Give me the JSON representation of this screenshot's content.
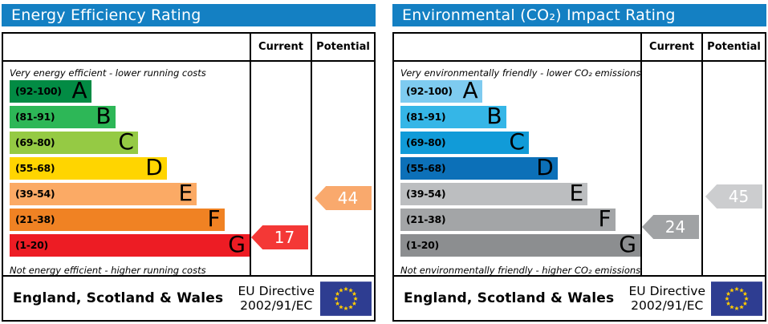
{
  "accent": {
    "header_bg": "#1480c3",
    "header_text": "#ffffff",
    "border": "#000000",
    "flag_bg": "#2e3d91",
    "flag_stars": "#ffcc00"
  },
  "chart_data": [
    {
      "type": "bar",
      "title": "Energy Efficiency Rating",
      "column_headers": [
        "Current",
        "Potential"
      ],
      "top_caption": "Very energy efficient - lower running costs",
      "bottom_caption": "Not energy efficient - higher running costs",
      "categories": [
        "A (92-100)",
        "B (81-91)",
        "C (69-80)",
        "D (55-68)",
        "E (39-54)",
        "F (21-38)",
        "G (1-20)"
      ],
      "band_colors": [
        "#028b44",
        "#2db757",
        "#95ca44",
        "#ffd500",
        "#fbaa65",
        "#f08223",
        "#ed1c24"
      ],
      "bar_lengths_pct": [
        34,
        44,
        53.5,
        65.5,
        78,
        89.5,
        100
      ],
      "current": {
        "value": 17,
        "band": "G"
      },
      "potential": {
        "value": 44,
        "band": "E"
      },
      "footer": "England, Scotland & Wales — EU Directive 2002/91/EC"
    },
    {
      "type": "bar",
      "title": "Environmental (CO₂) Impact Rating",
      "column_headers": [
        "Current",
        "Potential"
      ],
      "top_caption": "Very environmentally friendly - lower CO₂ emissions",
      "bottom_caption": "Not environmentally friendly - higher CO₂ emissions",
      "categories": [
        "A (92-100)",
        "B (81-91)",
        "C (69-80)",
        "D (55-68)",
        "E (39-54)",
        "F (21-38)",
        "G (1-20)"
      ],
      "band_colors": [
        "#7ecbf0",
        "#35b6e7",
        "#119bd8",
        "#0c70b8",
        "#bcbec0",
        "#a3a5a7",
        "#8c8e90"
      ],
      "bar_lengths_pct": [
        34,
        44,
        53.5,
        65.5,
        78,
        89.5,
        100
      ],
      "current": {
        "value": 24,
        "band": "F"
      },
      "potential": {
        "value": 45,
        "band": "E"
      },
      "footer": "England, Scotland & Wales — EU Directive 2002/91/EC"
    }
  ],
  "panels": [
    {
      "id": "energy-efficiency",
      "title": "Energy Efficiency Rating",
      "columns": {
        "current": "Current",
        "potential": "Potential"
      },
      "top_caption": "Very energy efficient - lower running costs",
      "bottom_caption": "Not energy efficient - higher running costs",
      "bands": [
        {
          "label": "(92-100)",
          "letter": "A",
          "lo": 92,
          "hi": 100,
          "color": "#028b44",
          "width_pct": 34
        },
        {
          "label": "(81-91)",
          "letter": "B",
          "lo": 81,
          "hi": 91,
          "color": "#2db757",
          "width_pct": 44
        },
        {
          "label": "(69-80)",
          "letter": "C",
          "lo": 69,
          "hi": 80,
          "color": "#95ca44",
          "width_pct": 53.5
        },
        {
          "label": "(55-68)",
          "letter": "D",
          "lo": 55,
          "hi": 68,
          "color": "#ffd500",
          "width_pct": 65.5
        },
        {
          "label": "(39-54)",
          "letter": "E",
          "lo": 39,
          "hi": 54,
          "color": "#fbaa65",
          "width_pct": 78
        },
        {
          "label": "(21-38)",
          "letter": "F",
          "lo": 21,
          "hi": 38,
          "color": "#f08223",
          "width_pct": 89.5
        },
        {
          "label": "(1-20)",
          "letter": "G",
          "lo": 1,
          "hi": 20,
          "color": "#ed1c24",
          "width_pct": 100
        }
      ],
      "current": {
        "value": 17,
        "color": "#f43836"
      },
      "potential": {
        "value": 44,
        "color": "#f9a96d"
      },
      "footer": {
        "region": "England, Scotland & Wales",
        "directive_line1": "EU Directive",
        "directive_line2": "2002/91/EC"
      }
    },
    {
      "id": "environmental-impact",
      "title": "Environmental (CO₂) Impact Rating",
      "columns": {
        "current": "Current",
        "potential": "Potential"
      },
      "top_caption": "Very environmentally friendly - lower CO₂ emissions",
      "bottom_caption": "Not environmentally friendly - higher CO₂ emissions",
      "bands": [
        {
          "label": "(92-100)",
          "letter": "A",
          "lo": 92,
          "hi": 100,
          "color": "#7ecbf0",
          "width_pct": 34
        },
        {
          "label": "(81-91)",
          "letter": "B",
          "lo": 81,
          "hi": 91,
          "color": "#35b6e7",
          "width_pct": 44
        },
        {
          "label": "(69-80)",
          "letter": "C",
          "lo": 69,
          "hi": 80,
          "color": "#119bd8",
          "width_pct": 53.5
        },
        {
          "label": "(55-68)",
          "letter": "D",
          "lo": 55,
          "hi": 68,
          "color": "#0c70b8",
          "width_pct": 65.5
        },
        {
          "label": "(39-54)",
          "letter": "E",
          "lo": 39,
          "hi": 54,
          "color": "#bcbec0",
          "width_pct": 78
        },
        {
          "label": "(21-38)",
          "letter": "F",
          "lo": 21,
          "hi": 38,
          "color": "#a3a5a7",
          "width_pct": 89.5
        },
        {
          "label": "(1-20)",
          "letter": "G",
          "lo": 1,
          "hi": 20,
          "color": "#8c8e90",
          "width_pct": 100
        }
      ],
      "current": {
        "value": 24,
        "color": "#a0a2a4"
      },
      "potential": {
        "value": 45,
        "color": "#cccdcf"
      },
      "footer": {
        "region": "England, Scotland & Wales",
        "directive_line1": "EU Directive",
        "directive_line2": "2002/91/EC"
      }
    }
  ]
}
